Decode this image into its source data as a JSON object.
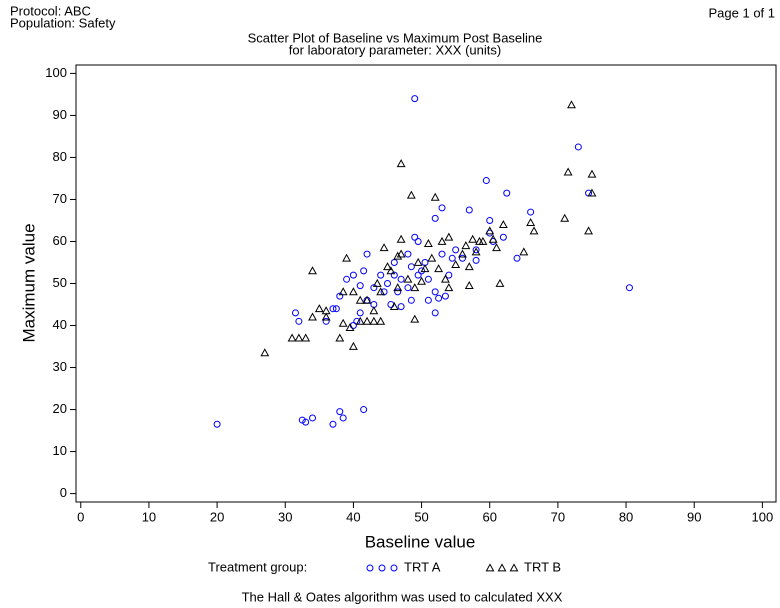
{
  "header": {
    "protocol": "Protocol: ABC",
    "population": "Population: Safety",
    "page": "Page 1 of 1"
  },
  "chart_data": {
    "type": "scatter",
    "title": "Scatter Plot of Baseline vs Maximum Post Baseline",
    "subtitle": "for laboratory parameter: XXX (units)",
    "x_label": "Baseline value",
    "y_label": "Maximum value",
    "xlim": [
      -0.7,
      102
    ],
    "ylim": [
      -2,
      102
    ],
    "xticks": [
      0,
      10,
      20,
      30,
      40,
      50,
      60,
      70,
      80,
      90,
      100
    ],
    "yticks": [
      0,
      10,
      20,
      30,
      40,
      50,
      60,
      70,
      80,
      90,
      100
    ],
    "grid": false,
    "legend_title": "Treatment group:",
    "series": [
      {
        "name": "TRT A",
        "color": "#0000ff",
        "marker": "circle",
        "x": [
          20,
          31.5,
          32,
          32.5,
          33,
          34,
          36,
          37,
          37,
          37.5,
          38,
          38.5,
          38,
          39,
          40,
          40,
          40.5,
          41,
          41,
          41.5,
          41.5,
          42,
          43,
          43,
          44,
          44.5,
          45,
          45.5,
          46,
          46,
          46.5,
          47,
          47,
          48,
          48.5,
          48.5,
          49,
          49,
          49.5,
          49.5,
          50,
          50.5,
          51,
          51,
          52,
          52,
          52,
          52.5,
          53,
          53,
          53.5,
          54,
          54.5,
          55,
          56,
          57,
          58,
          58,
          59.5,
          60,
          60.5,
          62,
          62.5,
          64,
          66,
          73,
          74.5,
          80.5,
          60,
          42,
          48
        ],
        "values": [
          16.5,
          43,
          41,
          17.5,
          17,
          18,
          41,
          44,
          16.5,
          44,
          19.5,
          18,
          47,
          51,
          52,
          40,
          41,
          43,
          49.5,
          53,
          20,
          46,
          45,
          49,
          52,
          48,
          50,
          45,
          52,
          55,
          48,
          51,
          44.5,
          57,
          46,
          54,
          94,
          61,
          60,
          52,
          53,
          55,
          51,
          46,
          43,
          65.5,
          48,
          46.5,
          57,
          68,
          47,
          52,
          56,
          58,
          56,
          67.5,
          58,
          55.5,
          74.5,
          65,
          60,
          61,
          71.5,
          56,
          67,
          82.5,
          71.5,
          49,
          62,
          57,
          49
        ]
      },
      {
        "name": "TRT B",
        "color": "#000000",
        "marker": "triangle",
        "x": [
          27,
          31,
          32,
          33,
          34,
          34,
          35,
          36,
          36,
          38,
          38.5,
          38.5,
          39,
          39.5,
          40,
          40,
          41,
          41,
          42,
          42,
          43,
          43,
          43.5,
          44,
          44,
          44.5,
          45,
          45.5,
          46,
          46.5,
          46.5,
          47,
          47,
          47,
          48,
          48.5,
          49,
          49,
          49.5,
          50,
          50.5,
          51,
          51.5,
          52,
          52.5,
          53,
          53.5,
          54,
          54,
          55,
          56,
          56.5,
          57,
          57.5,
          57,
          58,
          58.5,
          59,
          60,
          60.5,
          61,
          61.5,
          62,
          65,
          66,
          66.5,
          71,
          71.5,
          72,
          74.5,
          75,
          75
        ],
        "values": [
          33.5,
          37,
          37,
          37,
          42,
          53,
          44,
          42,
          43.5,
          37,
          40.5,
          48,
          56,
          39.5,
          35,
          48,
          46,
          41,
          41,
          46,
          43.5,
          41,
          50,
          48,
          41,
          58.5,
          54,
          53,
          44.5,
          49,
          56.5,
          78.5,
          60.5,
          57,
          51,
          71,
          49,
          41.5,
          55,
          50.5,
          53.5,
          59.5,
          56,
          70.5,
          53.5,
          60,
          51,
          49,
          61,
          54.5,
          57,
          59,
          54,
          60.5,
          49.5,
          57.5,
          60,
          60,
          62.5,
          60.5,
          58.5,
          50,
          64,
          57.5,
          64.5,
          62.5,
          65.5,
          76.5,
          92.5,
          62.5,
          76,
          71.5
        ]
      }
    ]
  },
  "footnote": "The Hall & Oates algorithm was used to calculated XXX"
}
